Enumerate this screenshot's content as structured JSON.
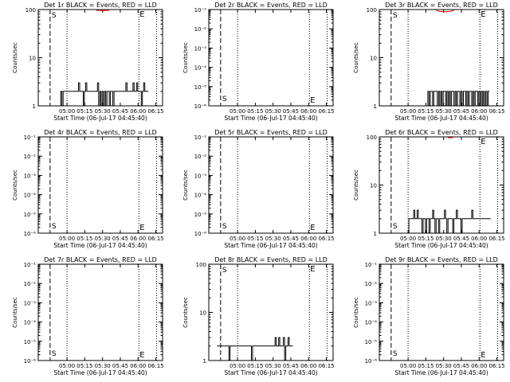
{
  "colors": {
    "events": "#000000",
    "lld": "#ff0000",
    "axis": "#000000",
    "background": "#ffffff"
  },
  "common": {
    "xlabel": "Start Time (06-Jul-17 04:45:40)",
    "ylabel": "Counts/sec",
    "xticklabels": [
      "05:00",
      "05:15",
      "05:30",
      "05:45",
      "06:00",
      "06:15"
    ],
    "start_marker": "S",
    "end_marker": "E"
  },
  "chart_data": [
    {
      "type": "line",
      "title": "Det 1r BLACK = Events, RED = LLD",
      "yscale": "log",
      "ylim": [
        1,
        100
      ],
      "yticklabels": [
        "1",
        "10",
        "100"
      ],
      "yticks": [
        1,
        10,
        100
      ],
      "xlim_minutes": [
        -10,
        95
      ],
      "start_minute": 0,
      "end_minute": 75,
      "dotted_minutes": [
        14.3,
        75,
        90
      ],
      "series": [
        {
          "color": "#000000",
          "x": [
            7,
            8,
            9,
            10,
            11,
            12,
            13,
            14,
            15,
            16,
            17,
            18,
            19,
            20,
            21,
            22,
            23,
            24,
            25,
            26,
            27,
            28,
            29,
            30,
            31,
            32,
            33,
            34,
            35,
            36,
            37,
            38,
            39,
            40,
            41,
            42,
            43,
            44,
            45,
            46,
            47,
            48,
            49,
            50,
            51,
            52,
            53,
            54,
            55,
            56,
            57,
            58,
            59,
            60,
            61,
            62,
            63,
            64,
            65,
            66,
            67,
            68,
            69,
            70,
            71,
            72,
            73,
            74,
            75,
            76,
            77,
            78,
            79,
            80,
            81,
            82
          ],
          "y": [
            1,
            1,
            2,
            1,
            2,
            2,
            2,
            2,
            2,
            2,
            2,
            2,
            2,
            2,
            2,
            2,
            2,
            3,
            2,
            2,
            2,
            1,
            2,
            3,
            2,
            2,
            2,
            2,
            2,
            2,
            2,
            2,
            2,
            3,
            1,
            2,
            1,
            2,
            1,
            2,
            1,
            2,
            2,
            1,
            2,
            2,
            1,
            2,
            2,
            2,
            2,
            2,
            2,
            2,
            2,
            2,
            2,
            3,
            2,
            2,
            2,
            2,
            2,
            3,
            2,
            2,
            3,
            2,
            2,
            2,
            1,
            2,
            3,
            2,
            2,
            2
          ]
        },
        {
          "color": "#ff0000",
          "x": [
            39,
            42,
            45,
            48,
            50
          ],
          "y": [
            100,
            95,
            96,
            95,
            100
          ]
        }
      ]
    },
    {
      "type": "line",
      "title": "Det 2r BLACK = Events, RED = LLD",
      "yscale": "log",
      "ylim": [
        1e-06,
        0.1
      ],
      "yticklabels": [
        "10⁻⁶",
        "10⁻⁵",
        "10⁻⁴",
        "10⁻³",
        "10⁻²",
        "10⁻¹"
      ],
      "yticks": [
        1e-06,
        1e-05,
        0.0001,
        0.001,
        0.01,
        0.1
      ],
      "xlim_minutes": [
        -10,
        95
      ],
      "start_minute": 0,
      "end_minute": 75,
      "dotted_minutes": [
        14.3,
        75,
        90
      ],
      "series": []
    },
    {
      "type": "line",
      "title": "Det 3r BLACK = Events, RED = LLD",
      "yscale": "log",
      "ylim": [
        1,
        100
      ],
      "yticklabels": [
        "1",
        "10",
        "100"
      ],
      "yticks": [
        1,
        10,
        100
      ],
      "xlim_minutes": [
        -10,
        95
      ],
      "start_minute": 0,
      "end_minute": 75,
      "dotted_minutes": [
        14.3,
        75,
        90
      ],
      "series": [
        {
          "color": "#000000",
          "x": [
            30,
            31,
            32,
            33,
            34,
            35,
            36,
            37,
            38,
            39,
            40,
            41,
            42,
            43,
            44,
            45,
            46,
            47,
            48,
            49,
            50,
            51,
            52,
            53,
            54,
            55,
            56,
            57,
            58,
            59,
            60,
            61,
            62,
            63,
            64,
            65,
            66,
            67,
            68,
            69,
            70,
            71,
            72,
            73,
            74,
            75,
            76,
            77,
            78,
            79,
            80,
            81,
            82
          ],
          "y": [
            1,
            2,
            1,
            2,
            2,
            1,
            2,
            2,
            2,
            1,
            2,
            1,
            2,
            1,
            2,
            2,
            1,
            2,
            1,
            2,
            1,
            2,
            2,
            1,
            2,
            1,
            2,
            2,
            1,
            2,
            1,
            2,
            2,
            1,
            2,
            1,
            2,
            2,
            1,
            2,
            1,
            2,
            2,
            1,
            2,
            1,
            2,
            1,
            2,
            1,
            2,
            1,
            2
          ]
        },
        {
          "color": "#ff0000",
          "x": [
            38,
            41,
            44,
            47,
            50,
            53
          ],
          "y": [
            100,
            92,
            90,
            90,
            92,
            100
          ]
        }
      ]
    },
    {
      "type": "line",
      "title": "Det 4r BLACK = Events, RED = LLD",
      "yscale": "log",
      "ylim": [
        1e-06,
        0.1
      ],
      "yticklabels": [
        "10⁻⁶",
        "10⁻⁵",
        "10⁻⁴",
        "10⁻³",
        "10⁻²",
        "10⁻¹"
      ],
      "yticks": [
        1e-06,
        1e-05,
        0.0001,
        0.001,
        0.01,
        0.1
      ],
      "xlim_minutes": [
        -10,
        95
      ],
      "start_minute": 0,
      "end_minute": 75,
      "dotted_minutes": [
        14.3,
        75,
        90
      ],
      "series": []
    },
    {
      "type": "line",
      "title": "Det 5r BLACK = Events, RED = LLD",
      "yscale": "log",
      "ylim": [
        1e-06,
        0.1
      ],
      "yticklabels": [
        "10⁻⁶",
        "10⁻⁵",
        "10⁻⁴",
        "10⁻³",
        "10⁻²",
        "10⁻¹"
      ],
      "yticks": [
        1e-06,
        1e-05,
        0.0001,
        0.001,
        0.01,
        0.1
      ],
      "xlim_minutes": [
        -10,
        95
      ],
      "start_minute": 0,
      "end_minute": 75,
      "dotted_minutes": [
        14.3,
        75,
        90
      ],
      "series": []
    },
    {
      "type": "line",
      "title": "Det 6r BLACK = Events, RED = LLD",
      "yscale": "log",
      "ylim": [
        1,
        100
      ],
      "yticklabels": [
        "1",
        "10",
        "100"
      ],
      "yticks": [
        1,
        10,
        100
      ],
      "xlim_minutes": [
        -10,
        95
      ],
      "start_minute": 0,
      "end_minute": 75,
      "dotted_minutes": [
        14.3,
        75,
        90
      ],
      "series": [
        {
          "color": "#000000",
          "x": [
            14,
            15,
            16,
            17,
            18,
            19,
            20,
            21,
            22,
            23,
            24,
            25,
            26,
            27,
            28,
            29,
            30,
            31,
            32,
            33,
            34,
            35,
            36,
            37,
            38,
            39,
            40,
            41,
            42,
            43,
            44,
            45,
            46,
            47,
            48,
            49,
            50,
            51,
            52,
            53,
            54,
            55,
            56,
            57,
            58,
            59,
            60,
            61,
            62,
            63,
            64,
            65,
            66,
            67,
            68,
            69,
            70,
            71,
            72,
            73,
            74,
            75,
            76,
            77,
            78,
            79,
            80,
            81,
            82,
            83
          ],
          "y": [
            1,
            2,
            2,
            2,
            2,
            3,
            2,
            2,
            3,
            2,
            2,
            2,
            1,
            2,
            2,
            1,
            2,
            2,
            1,
            2,
            2,
            3,
            2,
            1,
            2,
            2,
            1,
            2,
            2,
            2,
            2,
            3,
            2,
            1,
            2,
            2,
            2,
            2,
            1,
            2,
            2,
            3,
            2,
            2,
            2,
            1,
            2,
            2,
            2,
            2,
            2,
            2,
            2,
            2,
            3,
            2,
            2,
            2,
            2,
            2,
            2,
            2,
            2,
            2,
            2,
            2,
            2,
            2,
            2,
            2
          ]
        },
        {
          "color": "#ff0000",
          "x": [
            48,
            50,
            52
          ],
          "y": [
            100,
            97,
            100
          ]
        }
      ]
    },
    {
      "type": "line",
      "title": "Det 7r BLACK = Events, RED = LLD",
      "yscale": "log",
      "ylim": [
        1e-06,
        0.1
      ],
      "yticklabels": [
        "10⁻⁶",
        "10⁻⁵",
        "10⁻⁴",
        "10⁻³",
        "10⁻²",
        "10⁻¹"
      ],
      "yticks": [
        1e-06,
        1e-05,
        0.0001,
        0.001,
        0.01,
        0.1
      ],
      "xlim_minutes": [
        -10,
        95
      ],
      "start_minute": 0,
      "end_minute": 75,
      "dotted_minutes": [
        14.3,
        75,
        90
      ],
      "series": []
    },
    {
      "type": "line",
      "title": "Det 8r BLACK = Events, RED = LLD",
      "yscale": "log",
      "ylim": [
        1,
        100
      ],
      "yticklabels": [
        "1",
        "10",
        "100"
      ],
      "yticks": [
        1,
        10,
        100
      ],
      "xlim_minutes": [
        -10,
        95
      ],
      "start_minute": 0,
      "end_minute": 75,
      "dotted_minutes": [
        14.3,
        75,
        90
      ],
      "series": [
        {
          "color": "#000000",
          "x": [
            -3,
            -2,
            -1,
            0,
            1,
            2,
            3,
            4,
            5,
            6,
            7,
            8,
            9,
            10,
            11,
            12,
            13,
            14,
            15,
            16,
            17,
            18,
            19,
            20,
            21,
            22,
            23,
            24,
            25,
            26,
            27,
            28,
            29,
            30,
            31,
            32,
            33,
            34,
            35,
            36,
            37,
            38,
            39,
            40,
            41,
            42,
            43,
            44,
            45,
            46,
            47,
            48,
            49,
            50,
            51,
            52,
            53,
            54,
            55,
            56,
            57,
            58,
            59,
            60
          ],
          "y": [
            2,
            2,
            2,
            2,
            2,
            2,
            2,
            2,
            2,
            2,
            1,
            2,
            2,
            2,
            2,
            2,
            2,
            2,
            2,
            2,
            2,
            2,
            2,
            2,
            2,
            2,
            2,
            2,
            2,
            1,
            2,
            2,
            2,
            2,
            2,
            2,
            2,
            2,
            2,
            2,
            2,
            2,
            2,
            2,
            2,
            2,
            2,
            2,
            2,
            3,
            2,
            2,
            3,
            2,
            2,
            2,
            3,
            1,
            2,
            2,
            3,
            2,
            2,
            2
          ]
        }
      ]
    },
    {
      "type": "line",
      "title": "Det 9r BLACK = Events, RED = LLD",
      "yscale": "log",
      "ylim": [
        1e-06,
        0.1
      ],
      "yticklabels": [
        "10⁻⁶",
        "10⁻⁵",
        "10⁻⁴",
        "10⁻³",
        "10⁻²",
        "10⁻¹"
      ],
      "yticks": [
        1e-06,
        1e-05,
        0.0001,
        0.001,
        0.01,
        0.1
      ],
      "xlim_minutes": [
        -10,
        95
      ],
      "start_minute": 0,
      "end_minute": 75,
      "dotted_minutes": [
        14.3,
        75,
        90
      ],
      "series": []
    }
  ]
}
